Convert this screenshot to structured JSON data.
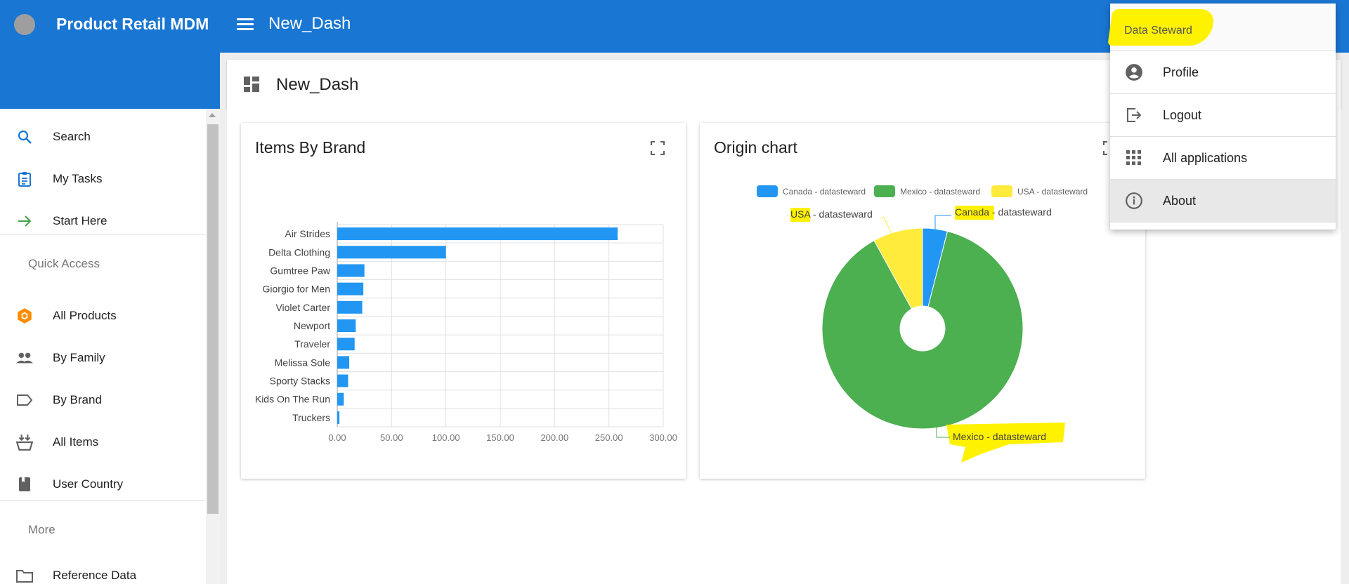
{
  "app": {
    "title": "Product Retail MDM",
    "page_title": "New_Dash"
  },
  "sidebar": {
    "items": [
      {
        "label": "Search",
        "icon": "search-icon"
      },
      {
        "label": "My Tasks",
        "icon": "clipboard-icon"
      },
      {
        "label": "Start Here",
        "icon": "arrow-right-icon"
      }
    ],
    "quick_access_label": "Quick Access",
    "quick_items": [
      {
        "label": "All Products",
        "icon": "cube-icon"
      },
      {
        "label": "By Family",
        "icon": "people-icon"
      },
      {
        "label": "By Brand",
        "icon": "tag-icon"
      },
      {
        "label": "All Items",
        "icon": "basket-icon"
      },
      {
        "label": "User Country",
        "icon": "bookmark-icon"
      }
    ],
    "more_label": "More",
    "more_items": [
      {
        "label": "Reference Data",
        "icon": "folder-icon"
      }
    ]
  },
  "dashboard": {
    "title": "New_Dash"
  },
  "widgets": {
    "brand": {
      "title": "Items By Brand"
    },
    "origin": {
      "title": "Origin chart"
    }
  },
  "user_menu": {
    "role": "Data Steward",
    "items": [
      {
        "label": "Profile",
        "icon": "account-circle-icon"
      },
      {
        "label": "Logout",
        "icon": "logout-icon"
      },
      {
        "label": "All applications",
        "icon": "apps-grid-icon"
      },
      {
        "label": "About",
        "icon": "info-icon"
      }
    ]
  },
  "colors": {
    "primary": "#1976d2",
    "bar": "#2196f3",
    "canada": "#2196f3",
    "mexico": "#4caf50",
    "usa": "#ffeb3b",
    "highlight": "#fff200"
  },
  "chart_data": [
    {
      "type": "bar",
      "orientation": "horizontal",
      "title": "Items By Brand",
      "categories": [
        "Air Strides",
        "Delta Clothing",
        "Gumtree Paw",
        "Giorgio for Men",
        "Violet Carter",
        "Newport",
        "Traveler",
        "Melissa Sole",
        "Sporty Stacks",
        "Kids On The Run",
        "Truckers"
      ],
      "values": [
        258,
        100,
        25,
        24,
        23,
        17,
        16,
        11,
        10,
        6,
        2
      ],
      "xlim": [
        0,
        300
      ],
      "ticks": [
        "0.00",
        "50.00",
        "100.00",
        "150.00",
        "200.00",
        "250.00",
        "300.00"
      ],
      "grid": true
    },
    {
      "type": "pie",
      "variant": "donut",
      "title": "Origin chart",
      "legend_position": "top",
      "slices": [
        {
          "name": "Canada - datasteward",
          "value": 4
        },
        {
          "name": "Mexico - datasteward",
          "value": 88
        },
        {
          "name": "USA - datasteward",
          "value": 8
        }
      ]
    }
  ]
}
